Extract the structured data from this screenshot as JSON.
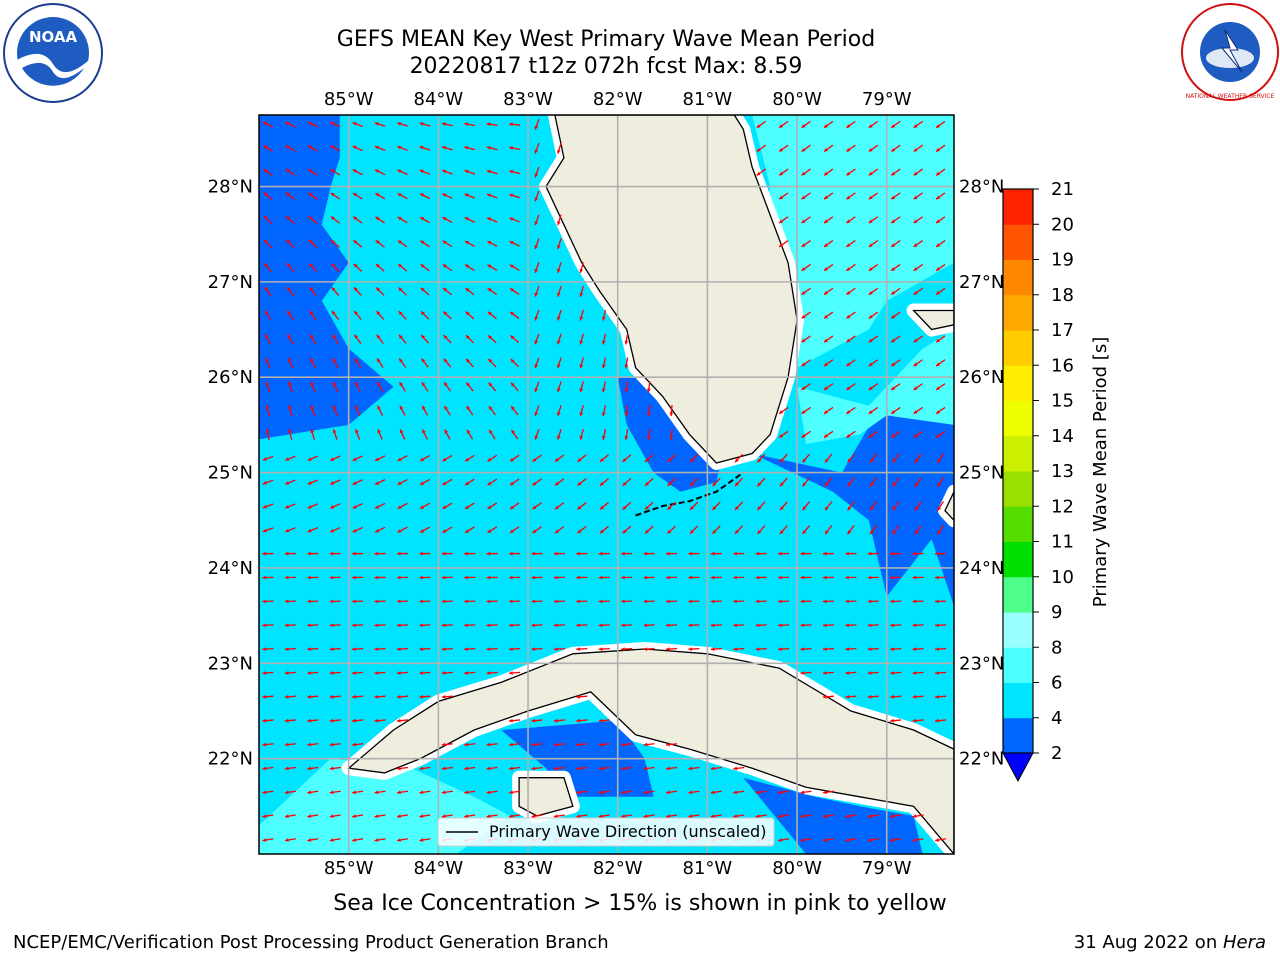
{
  "title": {
    "line1": "GEFS MEAN Key West Primary Wave Mean Period",
    "line2": "20220817 t12z 072h fcst   Max: 8.59"
  },
  "map": {
    "lon_labels": [
      "85°W",
      "84°W",
      "83°W",
      "82°W",
      "81°W",
      "80°W",
      "79°W"
    ],
    "lon_values": [
      -85,
      -84,
      -83,
      -82,
      -81,
      -80,
      -79
    ],
    "lat_labels": [
      "28°N",
      "27°N",
      "26°N",
      "25°N",
      "24°N",
      "23°N",
      "22°N"
    ],
    "lat_values": [
      28,
      27,
      26,
      25,
      24,
      23,
      22
    ],
    "extent": {
      "lon_min": -86,
      "lon_max": -78.25,
      "lat_min": 21,
      "lat_max": 28.75
    },
    "gridlines": true,
    "legend_label": "Primary Wave Direction (unscaled)",
    "arrow_color": "#ff0000",
    "land_color": "#efedde"
  },
  "colorbar": {
    "label": "Primary Wave Mean Period [s]",
    "ticks": [
      "2",
      "4",
      "6",
      "8",
      "9",
      "10",
      "11",
      "12",
      "13",
      "14",
      "15",
      "16",
      "17",
      "18",
      "19",
      "20",
      "21"
    ],
    "colors": [
      "#0066ff",
      "#00e5ff",
      "#4dffff",
      "#99ffff",
      "#4dff88",
      "#00e000",
      "#55dd00",
      "#99e000",
      "#ccee00",
      "#eeff00",
      "#ffee00",
      "#ffcc00",
      "#ffaa00",
      "#ff8800",
      "#ff5500",
      "#ff2200"
    ],
    "under_color": "#0000ff"
  },
  "seaice_note": "Sea Ice Concentration > 15% is shown in pink to yellow",
  "footer": {
    "left": "NCEP/EMC/Verification Post Processing Product Generation Branch",
    "right_prefix": "31 Aug 2022 on ",
    "right_host": "Hera"
  },
  "logos": {
    "noaa_text": "NOAA",
    "nws_text": "NATIONAL WEATHER SERVICE"
  }
}
